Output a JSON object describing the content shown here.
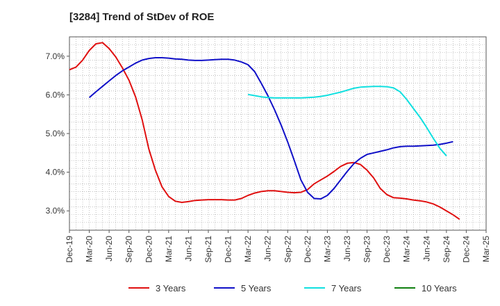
{
  "chart_data": {
    "type": "line",
    "title": "[3284]  Trend of StDev of ROE",
    "xlabel": "",
    "ylabel": "",
    "x_ticks": [
      "Dec-19",
      "Mar-20",
      "Jun-20",
      "Sep-20",
      "Dec-20",
      "Mar-21",
      "Jun-21",
      "Sep-21",
      "Dec-21",
      "Mar-22",
      "Jun-22",
      "Sep-22",
      "Dec-22",
      "Mar-23",
      "Jun-23",
      "Sep-23",
      "Dec-23",
      "Mar-24",
      "Jun-24",
      "Sep-24",
      "Dec-24",
      "Mar-25"
    ],
    "y_ticks": [
      "3.0%",
      "4.0%",
      "5.0%",
      "6.0%",
      "7.0%"
    ],
    "ylim": [
      2.5,
      7.5
    ],
    "grid": true,
    "legend_position": "bottom",
    "series": [
      {
        "name": "3 Years",
        "color": "#e01010",
        "points": [
          [
            0,
            6.65
          ],
          [
            1,
            6.72
          ],
          [
            2,
            6.9
          ],
          [
            3,
            7.15
          ],
          [
            4,
            7.32
          ],
          [
            5,
            7.35
          ],
          [
            6,
            7.2
          ],
          [
            7,
            6.98
          ],
          [
            8,
            6.7
          ],
          [
            9,
            6.38
          ],
          [
            10,
            5.95
          ],
          [
            11,
            5.35
          ],
          [
            12,
            4.6
          ],
          [
            13,
            4.05
          ],
          [
            14,
            3.62
          ],
          [
            15,
            3.37
          ],
          [
            16,
            3.25
          ],
          [
            17,
            3.22
          ],
          [
            18,
            3.24
          ],
          [
            19,
            3.27
          ],
          [
            20,
            3.28
          ],
          [
            21,
            3.29
          ],
          [
            22,
            3.29
          ],
          [
            23,
            3.29
          ],
          [
            24,
            3.28
          ],
          [
            25,
            3.28
          ],
          [
            26,
            3.32
          ],
          [
            27,
            3.4
          ],
          [
            28,
            3.46
          ],
          [
            29,
            3.5
          ],
          [
            30,
            3.52
          ],
          [
            31,
            3.52
          ],
          [
            32,
            3.5
          ],
          [
            33,
            3.48
          ],
          [
            34,
            3.47
          ],
          [
            35,
            3.48
          ],
          [
            36,
            3.55
          ],
          [
            37,
            3.7
          ],
          [
            38,
            3.8
          ],
          [
            39,
            3.9
          ],
          [
            40,
            4.02
          ],
          [
            41,
            4.15
          ],
          [
            42,
            4.23
          ],
          [
            43,
            4.25
          ],
          [
            44,
            4.2
          ],
          [
            45,
            4.05
          ],
          [
            46,
            3.85
          ],
          [
            47,
            3.58
          ],
          [
            48,
            3.42
          ],
          [
            49,
            3.34
          ],
          [
            50,
            3.33
          ],
          [
            51,
            3.31
          ],
          [
            52,
            3.28
          ],
          [
            53,
            3.26
          ],
          [
            54,
            3.23
          ],
          [
            55,
            3.18
          ],
          [
            56,
            3.1
          ],
          [
            57,
            3.0
          ],
          [
            58,
            2.9
          ],
          [
            59,
            2.78
          ]
        ]
      },
      {
        "name": "5 Years",
        "color": "#1010c8",
        "points": [
          [
            3,
            5.93
          ],
          [
            4,
            6.08
          ],
          [
            5,
            6.22
          ],
          [
            6,
            6.36
          ],
          [
            7,
            6.5
          ],
          [
            8,
            6.62
          ],
          [
            9,
            6.72
          ],
          [
            10,
            6.82
          ],
          [
            11,
            6.9
          ],
          [
            12,
            6.94
          ],
          [
            13,
            6.96
          ],
          [
            14,
            6.96
          ],
          [
            15,
            6.95
          ],
          [
            16,
            6.93
          ],
          [
            17,
            6.92
          ],
          [
            18,
            6.9
          ],
          [
            19,
            6.89
          ],
          [
            20,
            6.89
          ],
          [
            21,
            6.9
          ],
          [
            22,
            6.91
          ],
          [
            23,
            6.92
          ],
          [
            24,
            6.92
          ],
          [
            25,
            6.9
          ],
          [
            26,
            6.85
          ],
          [
            27,
            6.78
          ],
          [
            28,
            6.6
          ],
          [
            29,
            6.3
          ],
          [
            30,
            5.98
          ],
          [
            31,
            5.62
          ],
          [
            32,
            5.22
          ],
          [
            33,
            4.78
          ],
          [
            34,
            4.3
          ],
          [
            35,
            3.8
          ],
          [
            36,
            3.48
          ],
          [
            37,
            3.32
          ],
          [
            38,
            3.31
          ],
          [
            39,
            3.4
          ],
          [
            40,
            3.58
          ],
          [
            41,
            3.8
          ],
          [
            42,
            4.02
          ],
          [
            43,
            4.22
          ],
          [
            44,
            4.36
          ],
          [
            45,
            4.46
          ],
          [
            46,
            4.5
          ],
          [
            47,
            4.54
          ],
          [
            48,
            4.58
          ],
          [
            49,
            4.63
          ],
          [
            50,
            4.66
          ],
          [
            51,
            4.67
          ],
          [
            52,
            4.67
          ],
          [
            53,
            4.68
          ],
          [
            54,
            4.69
          ],
          [
            55,
            4.7
          ],
          [
            56,
            4.72
          ],
          [
            57,
            4.75
          ],
          [
            58,
            4.79
          ]
        ]
      },
      {
        "name": "7 Years",
        "color": "#10e0e0",
        "points": [
          [
            27,
            6.01
          ],
          [
            28,
            5.98
          ],
          [
            29,
            5.95
          ],
          [
            30,
            5.93
          ],
          [
            31,
            5.92
          ],
          [
            32,
            5.92
          ],
          [
            33,
            5.92
          ],
          [
            34,
            5.92
          ],
          [
            35,
            5.92
          ],
          [
            36,
            5.93
          ],
          [
            37,
            5.94
          ],
          [
            38,
            5.96
          ],
          [
            39,
            5.99
          ],
          [
            40,
            6.03
          ],
          [
            41,
            6.07
          ],
          [
            42,
            6.12
          ],
          [
            43,
            6.17
          ],
          [
            44,
            6.2
          ],
          [
            45,
            6.21
          ],
          [
            46,
            6.22
          ],
          [
            47,
            6.22
          ],
          [
            48,
            6.21
          ],
          [
            49,
            6.18
          ],
          [
            50,
            6.08
          ],
          [
            51,
            5.88
          ],
          [
            52,
            5.65
          ],
          [
            53,
            5.42
          ],
          [
            54,
            5.16
          ],
          [
            55,
            4.88
          ],
          [
            56,
            4.62
          ],
          [
            57,
            4.42
          ]
        ]
      },
      {
        "name": "10 Years",
        "color": "#108010",
        "points": []
      }
    ]
  }
}
